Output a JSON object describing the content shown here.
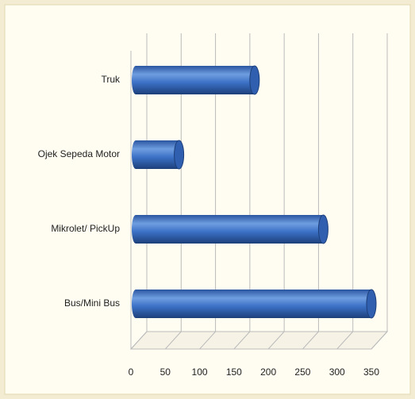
{
  "chart_data": {
    "type": "bar3d",
    "orientation": "horizontal",
    "categories": [
      "Bus/Mini Bus",
      "Mikrolet/ PickUp",
      "Ojek Sepeda Motor",
      "Truk"
    ],
    "values": [
      350,
      280,
      70,
      180
    ],
    "color": "#3a6fc4",
    "xlim": [
      0,
      350
    ],
    "xticks": [
      0,
      50,
      100,
      150,
      200,
      250,
      300,
      350
    ],
    "grid": true
  }
}
